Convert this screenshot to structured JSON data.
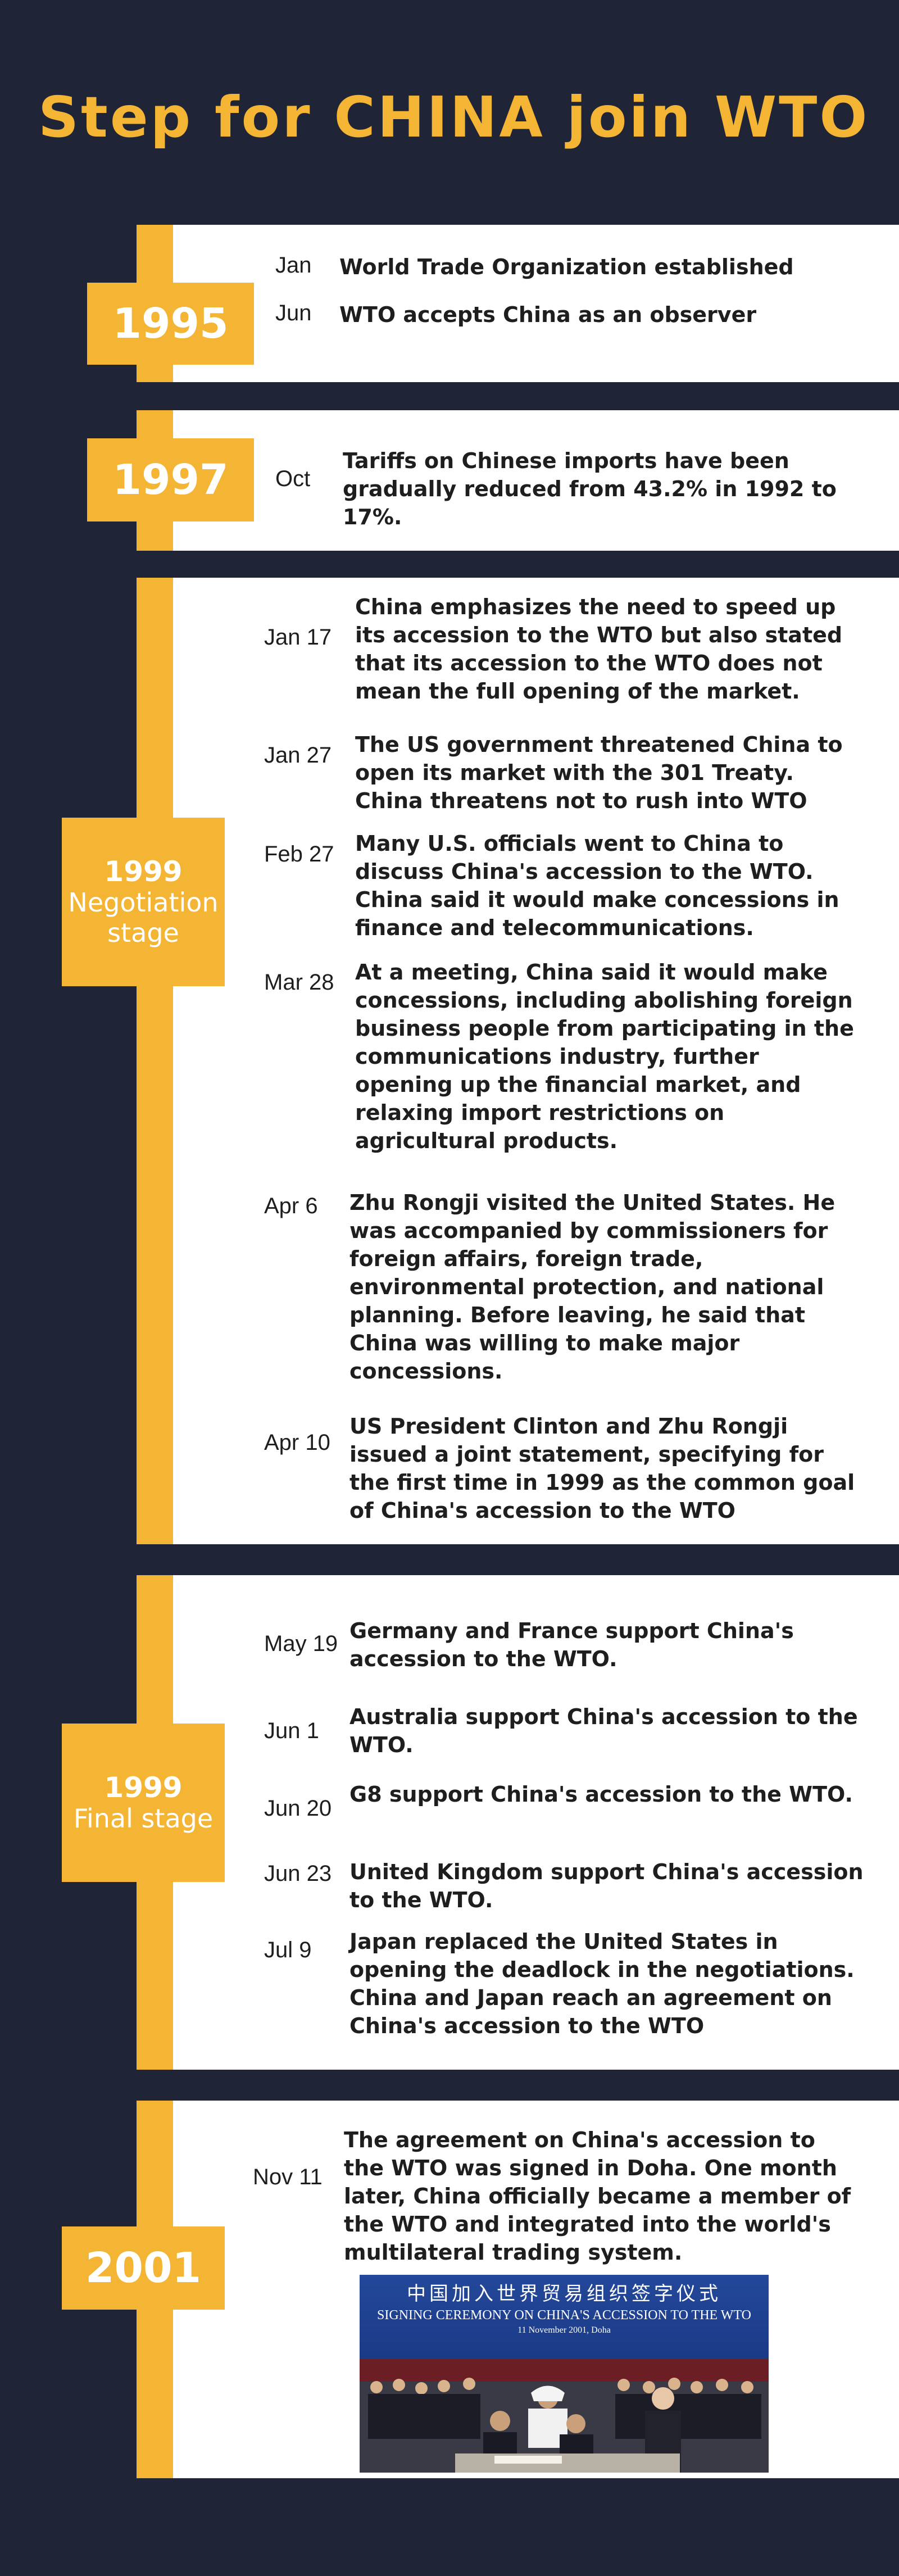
{
  "title": "Step for CHINA join WTO",
  "colors": {
    "background": "#1f2436",
    "accent": "#f4b434",
    "panel": "#ffffff",
    "text": "#1e1e1e"
  },
  "sections": [
    {
      "year": "1995",
      "stage": "",
      "events": [
        {
          "month": "Jan",
          "text": "World Trade Organization established"
        },
        {
          "month": "Jun",
          "text": "WTO accepts China as an observer"
        }
      ]
    },
    {
      "year": "1997",
      "stage": "",
      "events": [
        {
          "month": "Oct",
          "text": "Tariffs on Chinese imports have been gradually reduced from 43.2% in 1992 to 17%."
        }
      ]
    },
    {
      "year": "1999",
      "stage": "Negotiation stage",
      "events": [
        {
          "month": "Jan 17",
          "text": "China emphasizes the need to speed up its accession to the WTO but also stated that its accession to the WTO does not mean the full opening of the market."
        },
        {
          "month": "Jan 27",
          "text": "The US government threatened China to open its market with the 301 Treaty. China threatens not to rush into WTO"
        },
        {
          "month": "Feb 27",
          "text": "Many U.S. officials went to China to discuss China's accession to the WTO. China said it would make concessions in finance and telecommunications."
        },
        {
          "month": "Mar 28",
          "text": "At a meeting, China said it would make concessions, including abolishing foreign business people from participating in the communications industry, further opening up the financial market, and relaxing import restrictions on agricultural products."
        },
        {
          "month": "Apr 6",
          "text": "Zhu Rongji visited the United States. He was accompanied by commissioners for foreign affairs, foreign trade, environmental protection, and national planning. Before leaving, he said that China was willing to make major concessions."
        },
        {
          "month": "Apr 10",
          "text": "US President Clinton and Zhu Rongji issued a joint statement, specifying for the first time in 1999 as the common goal of China's accession to the WTO"
        }
      ]
    },
    {
      "year": "1999",
      "stage": "Final stage",
      "events": [
        {
          "month": "May 19",
          "text": "Germany and France support China's accession to the WTO."
        },
        {
          "month": "Jun 1",
          "text": "Australia support China's accession to the WTO."
        },
        {
          "month": "Jun 20",
          "text": "G8 support China's accession to the WTO."
        },
        {
          "month": "Jun 23",
          "text": "United Kingdom support China's accession to the WTO."
        },
        {
          "month": "Jul 9",
          "text": "Japan replaced the United States in opening the deadlock in the negotiations. China and Japan reach an agreement on China's accession to the WTO"
        }
      ]
    },
    {
      "year": "2001",
      "stage": "",
      "events": [
        {
          "month": "Nov 11",
          "text": "The agreement on China's accession to the WTO was signed in Doha. One month later, China officially became a member of the WTO and integrated into the world's multilateral trading system."
        }
      ],
      "photo": {
        "chinese_caption": "中国加入世界贸易组织签字仪式",
        "english_caption": "SIGNING CEREMONY ON CHINA'S ACCESSION TO THE WTO",
        "date_caption": "11 November 2001, Doha"
      }
    }
  ]
}
